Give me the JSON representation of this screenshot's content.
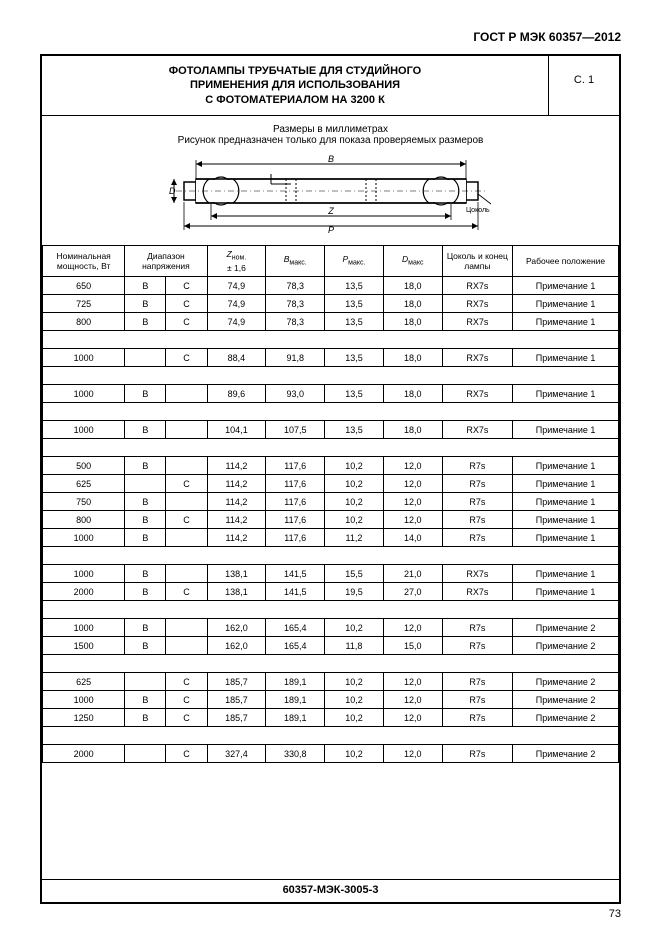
{
  "doc_id": "ГОСТ Р МЭК 60357—2012",
  "title_line1": "ФОТОЛАМПЫ ТРУБЧАТЫЕ ДЛЯ СТУДИЙНОГО",
  "title_line2": "ПРИМЕНЕНИЯ ДЛЯ ИСПОЛЬЗОВАНИЯ",
  "title_line3": "С ФОТОМАТЕРИАЛОМ НА 3200 К",
  "page_ref": "С. 1",
  "subtitle1": "Размеры в миллиметрах",
  "subtitle2": "Рисунок предназначен только для показа проверяемых размеров",
  "diagram_label": "Цоколь",
  "headers": {
    "c1": "Номинальная мощность, Вт",
    "c2": "Диапазон напряжения",
    "c3a": "Z",
    "c3b": "ном.",
    "c3c": "± 1,6",
    "c4a": "B",
    "c4b": "макс.",
    "c5a": "P",
    "c5b": "макс.",
    "c6a": "D",
    "c6b": "макс",
    "c7": "Цоколь и конец лампы",
    "c8": "Рабочее положение"
  },
  "groups": [
    [
      [
        "650",
        "B",
        "C",
        "74,9",
        "78,3",
        "13,5",
        "18,0",
        "RX7s",
        "Примечание 1"
      ],
      [
        "725",
        "B",
        "C",
        "74,9",
        "78,3",
        "13,5",
        "18,0",
        "RX7s",
        "Примечание 1"
      ],
      [
        "800",
        "B",
        "C",
        "74,9",
        "78,3",
        "13,5",
        "18,0",
        "RX7s",
        "Примечание 1"
      ]
    ],
    [
      [
        "1000",
        "",
        "C",
        "88,4",
        "91,8",
        "13,5",
        "18,0",
        "RX7s",
        "Примечание 1"
      ]
    ],
    [
      [
        "1000",
        "B",
        "",
        "89,6",
        "93,0",
        "13,5",
        "18,0",
        "RX7s",
        "Примечание 1"
      ]
    ],
    [
      [
        "1000",
        "B",
        "",
        "104,1",
        "107,5",
        "13,5",
        "18,0",
        "RX7s",
        "Примечание 1"
      ]
    ],
    [
      [
        "500",
        "B",
        "",
        "114,2",
        "117,6",
        "10,2",
        "12,0",
        "R7s",
        "Примечание 1"
      ],
      [
        "625",
        "",
        "C",
        "114,2",
        "117,6",
        "10,2",
        "12,0",
        "R7s",
        "Примечание 1"
      ],
      [
        "750",
        "B",
        "",
        "114,2",
        "117,6",
        "10,2",
        "12,0",
        "R7s",
        "Примечание 1"
      ],
      [
        "800",
        "B",
        "C",
        "114,2",
        "117,6",
        "10,2",
        "12,0",
        "R7s",
        "Примечание 1"
      ],
      [
        "1000",
        "B",
        "",
        "114,2",
        "117,6",
        "11,2",
        "14,0",
        "R7s",
        "Примечание 1"
      ]
    ],
    [
      [
        "1000",
        "B",
        "",
        "138,1",
        "141,5",
        "15,5",
        "21,0",
        "RX7s",
        "Примечание 1"
      ],
      [
        "2000",
        "B",
        "C",
        "138,1",
        "141,5",
        "19,5",
        "27,0",
        "RX7s",
        "Примечание 1"
      ]
    ],
    [
      [
        "1000",
        "B",
        "",
        "162,0",
        "165,4",
        "10,2",
        "12,0",
        "R7s",
        "Примечание 2"
      ],
      [
        "1500",
        "B",
        "",
        "162,0",
        "165,4",
        "11,8",
        "15,0",
        "R7s",
        "Примечание 2"
      ]
    ],
    [
      [
        "625",
        "",
        "C",
        "185,7",
        "189,1",
        "10,2",
        "12,0",
        "R7s",
        "Примечание 2"
      ],
      [
        "1000",
        "B",
        "C",
        "185,7",
        "189,1",
        "10,2",
        "12,0",
        "R7s",
        "Примечание 2"
      ],
      [
        "1250",
        "B",
        "C",
        "185,7",
        "189,1",
        "10,2",
        "12,0",
        "R7s",
        "Примечание 2"
      ]
    ],
    [
      [
        "2000",
        "",
        "C",
        "327,4",
        "330,8",
        "10,2",
        "12,0",
        "R7s",
        "Примечание 2"
      ]
    ]
  ],
  "footer_code": "60357-МЭК-3005-3",
  "page_num": "73",
  "col_widths": [
    "70",
    "35",
    "35",
    "50",
    "50",
    "50",
    "50",
    "60",
    "90"
  ],
  "colors": {
    "border": "#000000",
    "bg": "#ffffff",
    "text": "#000000"
  }
}
